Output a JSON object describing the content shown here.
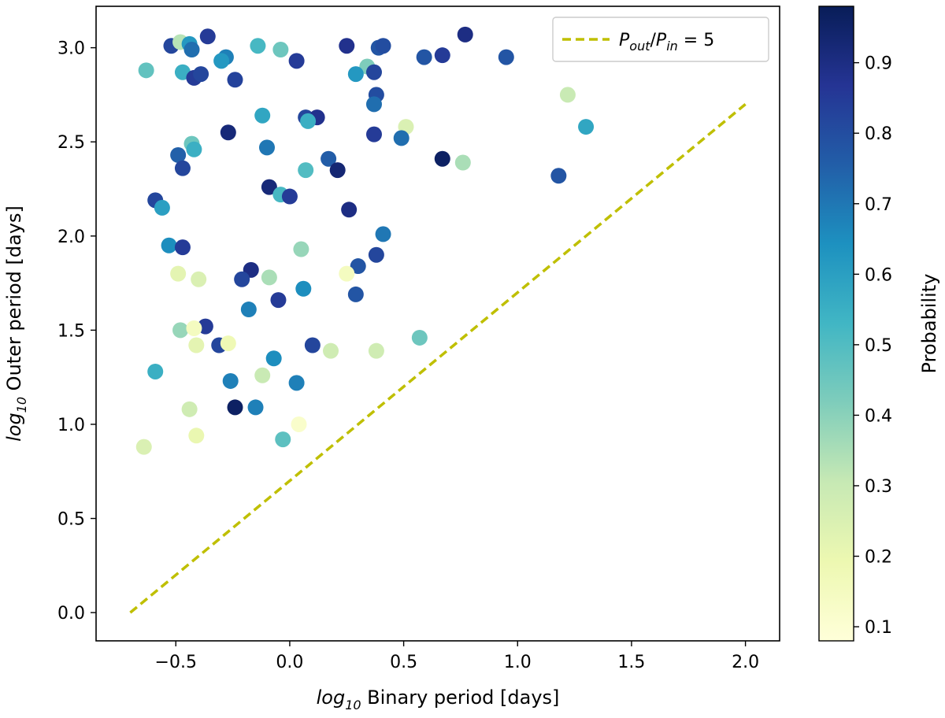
{
  "chart_data": {
    "type": "scatter",
    "xlabel": {
      "prefix": "log",
      "sub": "10",
      "text": " Binary period [days]"
    },
    "ylabel": {
      "prefix": "log",
      "sub": "10",
      "text": " Outer period [days]"
    },
    "xlim": [
      -0.85,
      2.15
    ],
    "ylim": [
      -0.15,
      3.22
    ],
    "xticks": [
      -0.5,
      0.0,
      0.5,
      1.0,
      1.5,
      2.0
    ],
    "xtick_labels": [
      "−0.5",
      "0.0",
      "0.5",
      "1.0",
      "1.5",
      "2.0"
    ],
    "yticks": [
      0.0,
      0.5,
      1.0,
      1.5,
      2.0,
      2.5,
      3.0
    ],
    "ytick_labels": [
      "0.0",
      "0.5",
      "1.0",
      "1.5",
      "2.0",
      "2.5",
      "3.0"
    ],
    "colorbar": {
      "label": "Probability",
      "range": [
        0.08,
        0.98
      ],
      "ticks": [
        0.1,
        0.2,
        0.3,
        0.4,
        0.5,
        0.6,
        0.7,
        0.8,
        0.9
      ],
      "tick_labels": [
        "0.1",
        "0.2",
        "0.3",
        "0.4",
        "0.5",
        "0.6",
        "0.7",
        "0.8",
        "0.9"
      ],
      "colormap": "YlGnBu",
      "colormap_stops": [
        "#ffffd9",
        "#edf8b1",
        "#c7e9b4",
        "#7fcdbb",
        "#41b6c4",
        "#1d91c0",
        "#225ea8",
        "#253494",
        "#081d58"
      ]
    },
    "legend": {
      "position": "top-right",
      "label": {
        "p1": "P",
        "sub1": "out",
        "slash": "/",
        "p2": "P",
        "sub2": "in",
        "rest": " = 5"
      }
    },
    "line": {
      "name": "P_out/P_in = 5",
      "color": "#bfbf00",
      "style": "dashed",
      "x": [
        -0.7,
        2.0
      ],
      "y": [
        0.0,
        2.7
      ]
    },
    "points": [
      {
        "x": -0.52,
        "y": 3.01,
        "p": 0.82
      },
      {
        "x": -0.48,
        "y": 3.03,
        "p": 0.33
      },
      {
        "x": -0.44,
        "y": 3.02,
        "p": 0.62
      },
      {
        "x": -0.43,
        "y": 2.99,
        "p": 0.72
      },
      {
        "x": -0.36,
        "y": 3.06,
        "p": 0.85
      },
      {
        "x": -0.14,
        "y": 3.01,
        "p": 0.52
      },
      {
        "x": -0.04,
        "y": 2.99,
        "p": 0.45
      },
      {
        "x": -0.63,
        "y": 2.88,
        "p": 0.47
      },
      {
        "x": -0.47,
        "y": 2.87,
        "p": 0.55
      },
      {
        "x": -0.42,
        "y": 2.84,
        "p": 0.85
      },
      {
        "x": -0.39,
        "y": 2.86,
        "p": 0.82
      },
      {
        "x": -0.28,
        "y": 2.95,
        "p": 0.68
      },
      {
        "x": -0.3,
        "y": 2.93,
        "p": 0.62
      },
      {
        "x": -0.24,
        "y": 2.83,
        "p": 0.83
      },
      {
        "x": 0.03,
        "y": 2.93,
        "p": 0.85
      },
      {
        "x": 0.25,
        "y": 3.01,
        "p": 0.88
      },
      {
        "x": 0.34,
        "y": 2.9,
        "p": 0.42
      },
      {
        "x": 0.37,
        "y": 2.87,
        "p": 0.82
      },
      {
        "x": 0.39,
        "y": 3.0,
        "p": 0.78
      },
      {
        "x": 0.41,
        "y": 3.01,
        "p": 0.8
      },
      {
        "x": 0.29,
        "y": 2.86,
        "p": 0.62
      },
      {
        "x": 0.59,
        "y": 2.95,
        "p": 0.78
      },
      {
        "x": 0.67,
        "y": 2.96,
        "p": 0.85
      },
      {
        "x": 0.77,
        "y": 3.07,
        "p": 0.9
      },
      {
        "x": 0.95,
        "y": 2.95,
        "p": 0.78
      },
      {
        "x": 0.38,
        "y": 2.75,
        "p": 0.8
      },
      {
        "x": 0.37,
        "y": 2.7,
        "p": 0.72
      },
      {
        "x": -0.12,
        "y": 2.64,
        "p": 0.58
      },
      {
        "x": 0.07,
        "y": 2.63,
        "p": 0.82
      },
      {
        "x": 0.12,
        "y": 2.63,
        "p": 0.88
      },
      {
        "x": 0.08,
        "y": 2.61,
        "p": 0.55
      },
      {
        "x": 1.22,
        "y": 2.75,
        "p": 0.3
      },
      {
        "x": 0.51,
        "y": 2.58,
        "p": 0.25
      },
      {
        "x": 1.3,
        "y": 2.58,
        "p": 0.58
      },
      {
        "x": -0.27,
        "y": 2.55,
        "p": 0.92
      },
      {
        "x": 0.37,
        "y": 2.54,
        "p": 0.85
      },
      {
        "x": 0.49,
        "y": 2.52,
        "p": 0.72
      },
      {
        "x": -0.43,
        "y": 2.49,
        "p": 0.45
      },
      {
        "x": -0.42,
        "y": 2.46,
        "p": 0.55
      },
      {
        "x": -0.1,
        "y": 2.47,
        "p": 0.7
      },
      {
        "x": -0.49,
        "y": 2.43,
        "p": 0.75
      },
      {
        "x": 0.17,
        "y": 2.41,
        "p": 0.76
      },
      {
        "x": 0.67,
        "y": 2.41,
        "p": 0.96
      },
      {
        "x": 0.76,
        "y": 2.39,
        "p": 0.35
      },
      {
        "x": -0.47,
        "y": 2.36,
        "p": 0.82
      },
      {
        "x": 0.07,
        "y": 2.35,
        "p": 0.5
      },
      {
        "x": 0.21,
        "y": 2.35,
        "p": 0.93
      },
      {
        "x": 1.18,
        "y": 2.32,
        "p": 0.78
      },
      {
        "x": -0.09,
        "y": 2.26,
        "p": 0.92
      },
      {
        "x": -0.04,
        "y": 2.22,
        "p": 0.52
      },
      {
        "x": 0.0,
        "y": 2.21,
        "p": 0.85
      },
      {
        "x": -0.59,
        "y": 2.19,
        "p": 0.82
      },
      {
        "x": -0.56,
        "y": 2.15,
        "p": 0.6
      },
      {
        "x": 0.26,
        "y": 2.14,
        "p": 0.9
      },
      {
        "x": 0.41,
        "y": 2.01,
        "p": 0.7
      },
      {
        "x": -0.53,
        "y": 1.95,
        "p": 0.65
      },
      {
        "x": -0.47,
        "y": 1.94,
        "p": 0.85
      },
      {
        "x": 0.05,
        "y": 1.93,
        "p": 0.38
      },
      {
        "x": 0.38,
        "y": 1.9,
        "p": 0.82
      },
      {
        "x": 0.3,
        "y": 1.84,
        "p": 0.78
      },
      {
        "x": -0.49,
        "y": 1.8,
        "p": 0.22
      },
      {
        "x": -0.17,
        "y": 1.82,
        "p": 0.9
      },
      {
        "x": 0.25,
        "y": 1.8,
        "p": 0.15
      },
      {
        "x": -0.4,
        "y": 1.77,
        "p": 0.25
      },
      {
        "x": -0.21,
        "y": 1.77,
        "p": 0.82
      },
      {
        "x": -0.09,
        "y": 1.78,
        "p": 0.35
      },
      {
        "x": 0.06,
        "y": 1.72,
        "p": 0.65
      },
      {
        "x": 0.29,
        "y": 1.69,
        "p": 0.78
      },
      {
        "x": -0.05,
        "y": 1.66,
        "p": 0.85
      },
      {
        "x": -0.18,
        "y": 1.61,
        "p": 0.68
      },
      {
        "x": -0.37,
        "y": 1.52,
        "p": 0.85
      },
      {
        "x": -0.48,
        "y": 1.5,
        "p": 0.38
      },
      {
        "x": -0.42,
        "y": 1.51,
        "p": 0.15
      },
      {
        "x": 0.57,
        "y": 1.46,
        "p": 0.45
      },
      {
        "x": -0.31,
        "y": 1.42,
        "p": 0.82
      },
      {
        "x": -0.41,
        "y": 1.42,
        "p": 0.22
      },
      {
        "x": -0.27,
        "y": 1.43,
        "p": 0.18
      },
      {
        "x": 0.1,
        "y": 1.42,
        "p": 0.82
      },
      {
        "x": 0.18,
        "y": 1.39,
        "p": 0.28
      },
      {
        "x": 0.38,
        "y": 1.39,
        "p": 0.28
      },
      {
        "x": -0.07,
        "y": 1.35,
        "p": 0.65
      },
      {
        "x": -0.59,
        "y": 1.28,
        "p": 0.55
      },
      {
        "x": -0.12,
        "y": 1.26,
        "p": 0.3
      },
      {
        "x": -0.26,
        "y": 1.23,
        "p": 0.68
      },
      {
        "x": 0.03,
        "y": 1.22,
        "p": 0.68
      },
      {
        "x": -0.24,
        "y": 1.09,
        "p": 0.96
      },
      {
        "x": -0.15,
        "y": 1.09,
        "p": 0.68
      },
      {
        "x": -0.44,
        "y": 1.08,
        "p": 0.28
      },
      {
        "x": 0.04,
        "y": 1.0,
        "p": 0.12
      },
      {
        "x": -0.41,
        "y": 0.94,
        "p": 0.2
      },
      {
        "x": -0.03,
        "y": 0.92,
        "p": 0.48
      },
      {
        "x": -0.64,
        "y": 0.88,
        "p": 0.25
      }
    ]
  }
}
